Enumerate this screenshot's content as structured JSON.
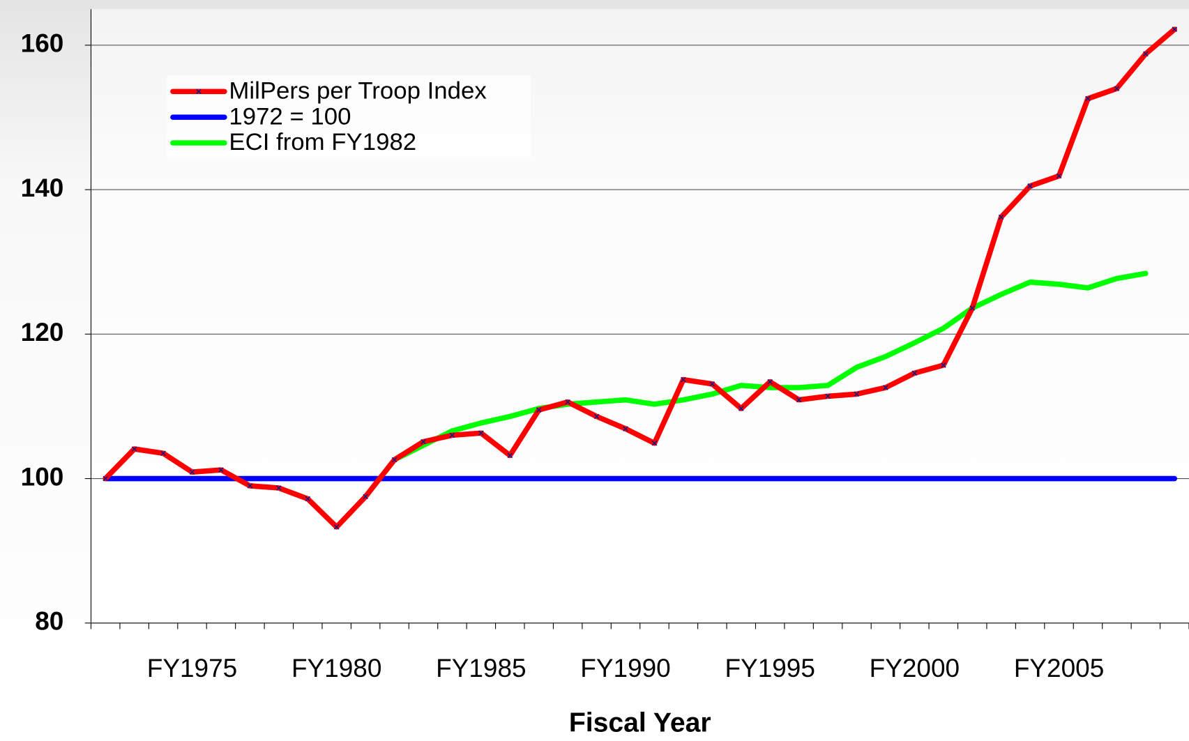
{
  "chart_data": {
    "type": "line",
    "xlabel": "Fiscal Year",
    "categories": [
      null,
      null,
      null,
      "FY1975",
      null,
      null,
      null,
      null,
      "FY1980",
      null,
      null,
      null,
      null,
      "FY1985",
      null,
      null,
      null,
      null,
      "FY1990",
      null,
      null,
      null,
      null,
      "FY1995",
      null,
      null,
      null,
      null,
      "FY2000",
      null,
      null,
      null,
      null,
      "FY2005",
      null,
      null,
      null,
      null
    ],
    "series": [
      {
        "name": "MilPers per Troop Index",
        "color": "#ff0000",
        "marker_color": "#1a1a80",
        "values": [
          100,
          104.1,
          103.5,
          100.9,
          101.2,
          99.0,
          98.7,
          97.2,
          93.3,
          97.5,
          102.6,
          105.1,
          106.0,
          106.3,
          103.2,
          109.5,
          110.6,
          108.6,
          106.9,
          104.9,
          113.7,
          113.1,
          109.7,
          113.4,
          110.9,
          111.4,
          111.7,
          112.6,
          114.6,
          115.7,
          123.6,
          136.2,
          140.5,
          141.9,
          152.6,
          154.0,
          158.8,
          162.2
        ]
      },
      {
        "name": "1972 = 100",
        "color": "#0000ff",
        "values": [
          100,
          100,
          100,
          100,
          100,
          100,
          100,
          100,
          100,
          100,
          100,
          100,
          100,
          100,
          100,
          100,
          100,
          100,
          100,
          100,
          100,
          100,
          100,
          100,
          100,
          100,
          100,
          100,
          100,
          100,
          100,
          100,
          100,
          100,
          100,
          100,
          100,
          100
        ]
      },
      {
        "name": "ECI from FY1982",
        "color": "#00ff00",
        "values": [
          null,
          null,
          null,
          null,
          null,
          null,
          null,
          null,
          null,
          null,
          102.6,
          104.6,
          106.6,
          107.7,
          108.6,
          109.7,
          110.3,
          110.6,
          110.9,
          110.3,
          110.9,
          111.7,
          112.9,
          112.6,
          112.6,
          112.9,
          115.4,
          116.9,
          118.8,
          120.8,
          123.6,
          125.5,
          127.2,
          126.9,
          126.4,
          127.7,
          128.4,
          null
        ]
      }
    ],
    "ylim": [
      80,
      165
    ],
    "yticks": [
      80,
      100,
      120,
      140,
      160
    ],
    "grid": true,
    "legend": "upper left"
  }
}
